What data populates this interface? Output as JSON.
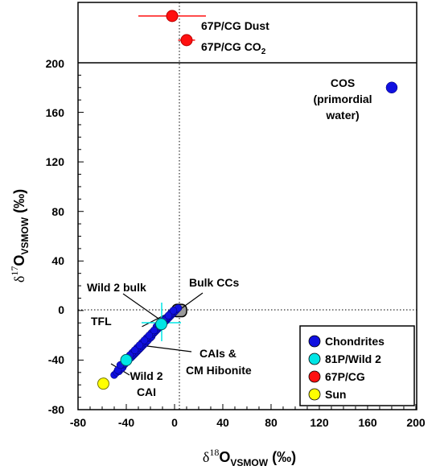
{
  "chart_data": {
    "type": "scatter",
    "xlabel": {
      "delta": "δ",
      "sup": "18",
      "main": "O",
      "sub": "VSMOW",
      "unit": " (‰)"
    },
    "ylabel": {
      "delta": "δ",
      "sup": "17",
      "main": "O",
      "sub": "VSMOW",
      "unit": " (‰)"
    },
    "xlim": [
      -80,
      200
    ],
    "ylim": [
      -80,
      200
    ],
    "ylim_top_panel": [
      200,
      240
    ],
    "x_ticks": [
      "-80",
      "-40",
      "0",
      "40",
      "80",
      "120",
      "160",
      "200"
    ],
    "y_ticks": [
      "-80",
      "-40",
      "0",
      "40",
      "80",
      "120",
      "160",
      "200"
    ],
    "colors": {
      "chondrites": "#1010e0",
      "wild2": "#00e5e5",
      "cg67p": "#ff1010",
      "sun": "#ffff00",
      "bulk_cc": "#999999"
    },
    "points": {
      "chondrites": [
        [
          -50,
          -52
        ],
        [
          -48,
          -50
        ],
        [
          -46,
          -49
        ],
        [
          -45,
          -47
        ],
        [
          -44,
          -47
        ],
        [
          -43,
          -46
        ],
        [
          -42,
          -44
        ],
        [
          -41,
          -43
        ],
        [
          -40,
          -42
        ],
        [
          -39,
          -41
        ],
        [
          -38,
          -40
        ],
        [
          -37,
          -38
        ],
        [
          -36,
          -38
        ],
        [
          -35,
          -37
        ],
        [
          -34,
          -36
        ],
        [
          -33,
          -35
        ],
        [
          -32,
          -34
        ],
        [
          -31,
          -33
        ],
        [
          -30,
          -32
        ],
        [
          -29,
          -31
        ],
        [
          -28,
          -30
        ],
        [
          -27,
          -29
        ],
        [
          -26,
          -28
        ],
        [
          -25,
          -27
        ],
        [
          -24,
          -26
        ],
        [
          -23,
          -25
        ],
        [
          -22,
          -24
        ],
        [
          -21,
          -22
        ],
        [
          -20,
          -22
        ],
        [
          -19,
          -21
        ],
        [
          -18,
          -19
        ],
        [
          -17,
          -18
        ],
        [
          -16,
          -17
        ],
        [
          -15,
          -16
        ],
        [
          -14,
          -15
        ],
        [
          -13,
          -14
        ],
        [
          -12,
          -13
        ],
        [
          -11,
          -12
        ],
        [
          -10,
          -11
        ],
        [
          -9,
          -10
        ],
        [
          -8,
          -9
        ],
        [
          -7,
          -8
        ],
        [
          -6,
          -7
        ],
        [
          -5,
          -6
        ],
        [
          -4,
          -5
        ],
        [
          -3,
          -4
        ],
        [
          -2,
          -3
        ],
        [
          -1,
          -2
        ],
        [
          0,
          -1
        ],
        [
          1,
          0
        ],
        [
          2,
          1
        ],
        [
          3,
          2
        ],
        [
          -47,
          -48
        ],
        [
          -43,
          -43
        ],
        [
          -39,
          -38
        ],
        [
          -35,
          -34
        ],
        [
          -31,
          -30
        ],
        [
          -27,
          -26
        ],
        [
          -23,
          -22
        ],
        [
          -19,
          -18
        ],
        [
          -15,
          -13
        ],
        [
          -11,
          -9
        ],
        [
          -7,
          -6
        ],
        [
          -3,
          -2
        ],
        [
          -45,
          -44
        ],
        [
          -41,
          -40
        ],
        [
          -37,
          -36
        ],
        [
          -33,
          -32
        ],
        [
          -29,
          -28
        ],
        [
          -25,
          -24
        ],
        [
          -21,
          -20
        ],
        [
          -17,
          -16
        ],
        [
          -13,
          -12
        ],
        [
          -9,
          -8
        ],
        [
          -5,
          -4
        ],
        [
          -1,
          0
        ],
        [
          180,
          180
        ]
      ],
      "wild2": [
        [
          -40,
          -40
        ],
        [
          -11,
          -11
        ]
      ],
      "sun": [
        [
          -59,
          -59
        ]
      ],
      "cg67p_dust": {
        "x": -2,
        "xerr": 28,
        "y": 231
      },
      "cg67p_co2": {
        "x": 10,
        "xerr": 7,
        "y": 215
      }
    },
    "tfl": {
      "x": [
        -27,
        5
      ],
      "y": [
        -13,
        3
      ]
    },
    "bulk_cc_box": {
      "x": [
        -2,
        10
      ],
      "y": [
        -5,
        5
      ]
    },
    "annotations": {
      "dust": "67P/CG Dust",
      "co2_main": "67P/CG CO",
      "co2_sub": "2",
      "cos_1": "COS",
      "cos_2": "(primordial",
      "cos_3": "water)",
      "wild2_bulk": "Wild 2 bulk",
      "bulk_ccs": "Bulk CCs",
      "tfl": "TFL",
      "cais_1": "CAIs &",
      "cais_2": "CM Hibonite",
      "wild2cai_1": "Wild 2",
      "wild2cai_2": "CAI"
    },
    "legend": {
      "placement": "bottom-right",
      "entries": [
        "Chondrites",
        "81P/Wild 2",
        "67P/CG",
        "Sun"
      ]
    }
  }
}
